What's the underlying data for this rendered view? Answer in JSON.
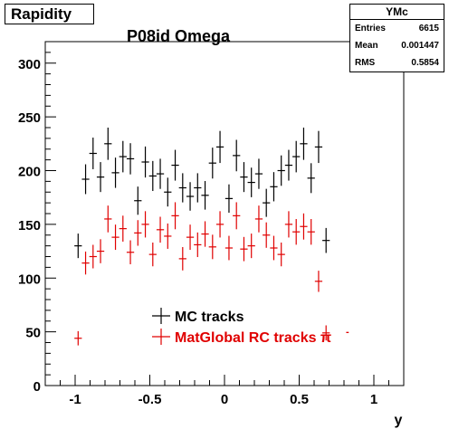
{
  "hist_title": "Rapidity",
  "plot_title": "P08id Omega",
  "stats": {
    "name": "YMc",
    "rows": [
      {
        "label": "Entries",
        "value": "6615"
      },
      {
        "label": "Mean",
        "value": "0.001447"
      },
      {
        "label": "RMS",
        "value": "0.5854"
      }
    ]
  },
  "colors": {
    "mc": "#000000",
    "rc": "#e00000",
    "axis": "#000000",
    "background": "#ffffff"
  },
  "legend": {
    "mc_label": "MC tracks",
    "rc_label": "MatGlobal RC tracks π",
    "rc_superscript": "-"
  },
  "chart_data": {
    "type": "scatter",
    "xlabel": "y",
    "ylabel": "",
    "xlim": [
      -1.2,
      1.2
    ],
    "ylim": [
      0,
      320
    ],
    "x_ticks": [
      -1,
      -0.5,
      0,
      0.5,
      1
    ],
    "x_tick_labels": [
      "-1",
      "-0.5",
      "0",
      "0.5",
      "1"
    ],
    "y_ticks": [
      0,
      50,
      100,
      150,
      200,
      250,
      300
    ],
    "y_tick_labels": [
      "0",
      "50",
      "100",
      "150",
      "200",
      "250",
      "300"
    ],
    "legend_position": "bottom-center",
    "x": [
      -1.0,
      -0.95,
      -0.9,
      -0.85,
      -0.8,
      -0.75,
      -0.7,
      -0.65,
      -0.6,
      -0.55,
      -0.5,
      -0.45,
      -0.4,
      -0.35,
      -0.3,
      -0.25,
      -0.2,
      -0.15,
      -0.1,
      -0.05,
      0.0,
      0.05,
      0.1,
      0.15,
      0.2,
      0.25,
      0.3,
      0.35,
      0.4,
      0.45,
      0.5,
      0.55,
      0.6,
      0.65,
      0.7,
      0.75,
      0.8,
      0.85,
      0.9,
      0.95,
      1.0
    ],
    "series": [
      {
        "name": "MC tracks",
        "values": [
          130,
          192,
          216,
          194,
          225,
          198,
          213,
          211,
          172,
          208,
          195,
          197,
          180,
          205,
          184,
          176,
          184,
          177,
          207,
          222,
          174,
          214,
          194,
          189,
          197,
          170,
          185,
          200,
          205,
          213,
          225,
          193,
          222,
          135
        ]
      }
    ],
    "series_x": [
      [
        -1.0,
        -0.95,
        -0.9,
        -0.85,
        -0.8,
        -0.75,
        -0.7,
        -0.65,
        -0.6,
        -0.55,
        -0.5,
        -0.45,
        -0.4,
        -0.35,
        -0.3,
        -0.25,
        -0.2,
        -0.15,
        -0.1,
        -0.05,
        0.0,
        0.05,
        0.1,
        0.15,
        0.2,
        0.25,
        0.3,
        0.35,
        0.4,
        0.45,
        0.5,
        0.55,
        0.6,
        0.65
      ]
    ]
  },
  "chart_points": {
    "mc": [
      [
        -0.98,
        130
      ],
      [
        -0.93,
        192
      ],
      [
        -0.88,
        216
      ],
      [
        -0.83,
        194
      ],
      [
        -0.78,
        225
      ],
      [
        -0.73,
        198
      ],
      [
        -0.68,
        213
      ],
      [
        -0.63,
        211
      ],
      [
        -0.58,
        172
      ],
      [
        -0.53,
        208
      ],
      [
        -0.48,
        195
      ],
      [
        -0.43,
        197
      ],
      [
        -0.38,
        180
      ],
      [
        -0.33,
        205
      ],
      [
        -0.28,
        184
      ],
      [
        -0.23,
        176
      ],
      [
        -0.18,
        184
      ],
      [
        -0.13,
        177
      ],
      [
        -0.08,
        207
      ],
      [
        -0.03,
        222
      ],
      [
        0.03,
        174
      ],
      [
        0.08,
        214
      ],
      [
        0.13,
        194
      ],
      [
        0.18,
        189
      ],
      [
        0.23,
        197
      ],
      [
        0.28,
        170
      ],
      [
        0.33,
        185
      ],
      [
        0.38,
        200
      ],
      [
        0.43,
        205
      ],
      [
        0.48,
        213
      ],
      [
        0.53,
        225
      ],
      [
        0.58,
        193
      ],
      [
        0.63,
        222
      ],
      [
        0.68,
        135
      ]
    ],
    "rc": [
      [
        -0.98,
        44
      ],
      [
        -0.93,
        114
      ],
      [
        -0.88,
        120
      ],
      [
        -0.83,
        125
      ],
      [
        -0.78,
        155
      ],
      [
        -0.73,
        138
      ],
      [
        -0.68,
        146
      ],
      [
        -0.63,
        124
      ],
      [
        -0.58,
        142
      ],
      [
        -0.53,
        150
      ],
      [
        -0.48,
        122
      ],
      [
        -0.43,
        145
      ],
      [
        -0.38,
        139
      ],
      [
        -0.33,
        158
      ],
      [
        -0.28,
        118
      ],
      [
        -0.23,
        138
      ],
      [
        -0.18,
        131
      ],
      [
        -0.13,
        141
      ],
      [
        -0.08,
        129
      ],
      [
        -0.03,
        150
      ],
      [
        0.03,
        128
      ],
      [
        0.08,
        158
      ],
      [
        0.13,
        127
      ],
      [
        0.18,
        130
      ],
      [
        0.23,
        155
      ],
      [
        0.28,
        140
      ],
      [
        0.33,
        128
      ],
      [
        0.38,
        122
      ],
      [
        0.43,
        150
      ],
      [
        0.48,
        143
      ],
      [
        0.53,
        148
      ],
      [
        0.58,
        143
      ],
      [
        0.63,
        97
      ],
      [
        0.68,
        49
      ]
    ]
  }
}
